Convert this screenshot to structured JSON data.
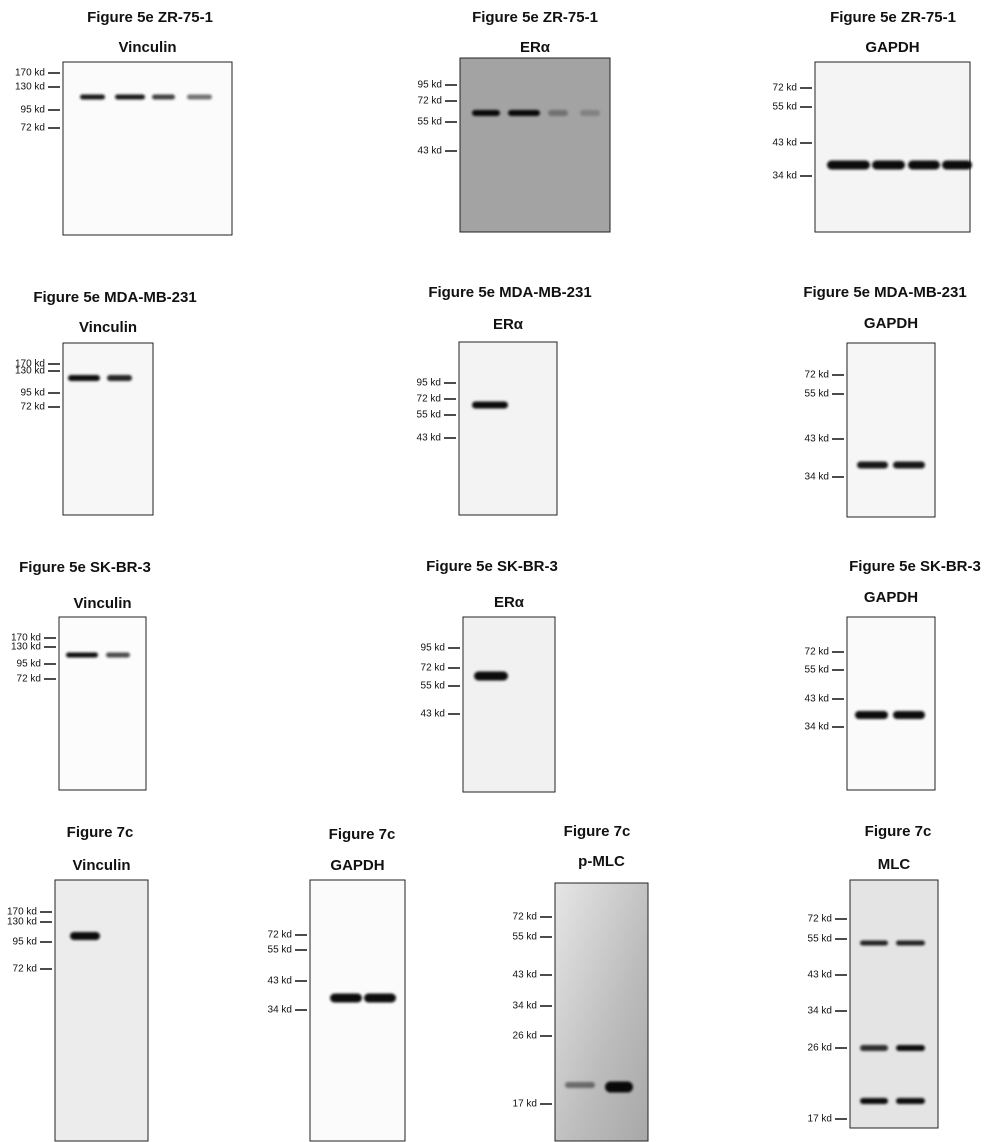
{
  "panels": [
    {
      "title": "Figure 5e ZR-75-1",
      "protein": "Vinculin",
      "markers": [
        "170 kd",
        "130 kd",
        "95  kd",
        "72  kd"
      ]
    },
    {
      "title": "Figure 5e ZR-75-1",
      "protein": "ERα",
      "markers": [
        "95 kd",
        "72 kd",
        "55 kd",
        "43 kd"
      ]
    },
    {
      "title": "Figure 5e ZR-75-1",
      "protein": "GAPDH",
      "markers": [
        "72 kd",
        "55 kd",
        "43 kd",
        "34 kd"
      ]
    },
    {
      "title": "Figure 5e MDA-MB-231",
      "protein": "Vinculin",
      "markers": [
        "170 kd",
        "130 kd",
        "95  kd",
        "72  kd"
      ]
    },
    {
      "title": "Figure 5e MDA-MB-231",
      "protein": "ERα",
      "markers": [
        "95 kd",
        "72 kd",
        "55 kd",
        "43 kd"
      ]
    },
    {
      "title": "Figure 5e MDA-MB-231",
      "protein": "GAPDH",
      "markers": [
        "72 kd",
        "55 kd",
        "43 kd",
        "34 kd"
      ]
    },
    {
      "title": "Figure 5e SK-BR-3",
      "protein": "Vinculin",
      "markers": [
        "170 kd",
        "130 kd",
        "95  kd",
        "72  kd"
      ]
    },
    {
      "title": "Figure 5e SK-BR-3",
      "protein": "ERα",
      "markers": [
        "95 kd",
        "72 kd",
        "55 kd",
        "43 kd"
      ]
    },
    {
      "title": "Figure 5e SK-BR-3",
      "protein": "GAPDH",
      "markers": [
        "72 kd",
        "55 kd",
        "43 kd",
        "34 kd"
      ]
    },
    {
      "title": "Figure 7c",
      "protein": "Vinculin",
      "markers": [
        "170 kd",
        "130 kd",
        "95  kd",
        "72  kd"
      ]
    },
    {
      "title": "Figure 7c",
      "protein": "GAPDH",
      "markers": [
        "72 kd",
        "55 kd",
        "43 kd",
        "34 kd"
      ]
    },
    {
      "title": "Figure 7c",
      "protein": "p-MLC",
      "markers": [
        "72 kd",
        "55 kd",
        "43 kd",
        "34 kd",
        "26 kd",
        "17 kd"
      ]
    },
    {
      "title": "Figure 7c",
      "protein": "MLC",
      "markers": [
        "72 kd",
        "55 kd",
        "43 kd",
        "34 kd",
        "26 kd",
        "17 kd"
      ]
    }
  ]
}
